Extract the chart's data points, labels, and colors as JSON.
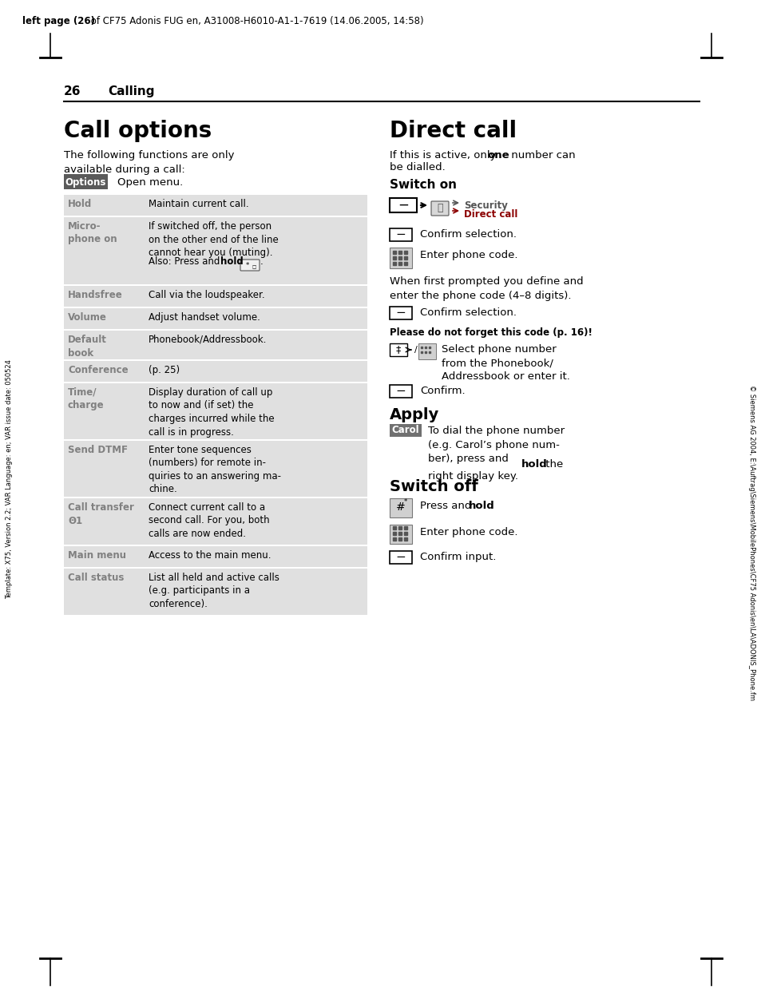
{
  "header_text_bold": "left page (26)",
  "header_text_rest": " of CF75 Adonis FUG en, A31008-H6010-A1-1-7619 (14.06.2005, 14:58)",
  "page_num": "26",
  "chapter": "Calling",
  "left_title": "Call options",
  "left_intro": "The following functions are only\navailable during a call:",
  "options_label": "Options",
  "options_desc": "Open menu.",
  "right_title": "Direct call",
  "switch_on_title": "Switch on",
  "switch_off_title": "Switch off",
  "apply_title": "Apply",
  "when_text": "When first prompted you define and\nenter the phone code (4–8 digits).",
  "please_text": "Please do not forget this code (p. 16)!",
  "sidebar_left": "Template: X75, Version 2.2; VAR Language: en; VAR issue date: 050524",
  "sidebar_right": "© Siemens AG 2004, E:\\Auftrag\\Siemens\\MobilePhones\\CF75 Adonis\\en\\LA\\ADONIS_Phone.fm",
  "table_bg": "#e0e0e0",
  "options_bg": "#5a5a5a",
  "gray_label": "#808080",
  "dark_red": "#8B0000"
}
